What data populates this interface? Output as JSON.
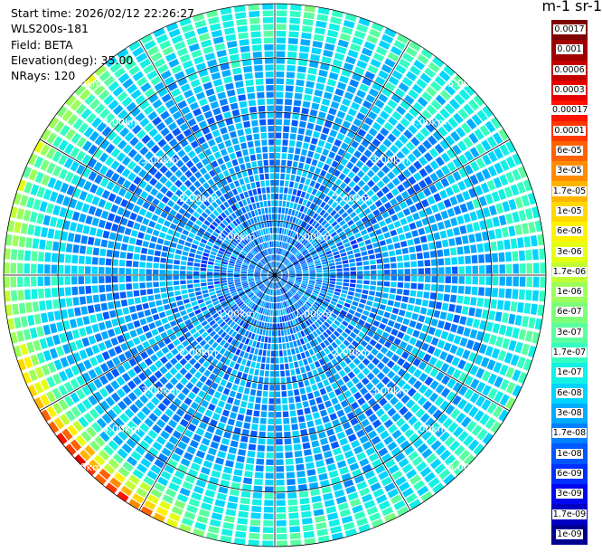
{
  "header": {
    "start_time": "Start time: 2026/02/12 22:26:27",
    "instrument": "WLS200s-181",
    "field": "Field: BETA",
    "elevation": "Elevation(deg): 35.00",
    "nrays": "NRays: 120"
  },
  "colorbar": {
    "title": "m-1 sr-1",
    "labels": [
      "0.0017",
      "0.001",
      "0.0006",
      "0.0003",
      "0.00017",
      "0.0001",
      "6e-05",
      "3e-05",
      "1.7e-05",
      "1e-05",
      "6e-06",
      "3e-06",
      "1.7e-06",
      "1e-06",
      "6e-07",
      "3e-07",
      "1.7e-07",
      "1e-07",
      "6e-08",
      "3e-08",
      "1.7e-08",
      "1e-08",
      "6e-09",
      "3e-09",
      "1.7e-09",
      "1e-09"
    ],
    "colors": [
      "#7f0000",
      "#a00000",
      "#c40000",
      "#e60000",
      "#ff1200",
      "#ff3800",
      "#ff6200",
      "#ff8c00",
      "#ffb400",
      "#ffd800",
      "#fff200",
      "#e4ff13",
      "#c0ff36",
      "#9cff5a",
      "#7dff7a",
      "#5bffa0",
      "#36ffc2",
      "#13f0e4",
      "#00d4ff",
      "#00acff",
      "#0080ff",
      "#0058ff",
      "#0030ff",
      "#0008f0",
      "#0000c4",
      "#000090"
    ]
  },
  "chart_data": {
    "type": "heatmap",
    "projection": "polar-ppi",
    "field": "BETA",
    "elevation_deg": 35.0,
    "n_rays": 120,
    "range_rings_km": [
      1.0,
      2.0,
      3.0,
      4.0,
      5.0
    ],
    "ring_labels": [
      "1.00km",
      "2.00km",
      "3.00km",
      "4.00km",
      "5.00km"
    ],
    "max_range_km": 5.0,
    "azimuth_lines_deg": [
      0,
      30,
      60,
      90,
      120,
      150,
      180,
      210,
      240,
      270,
      300,
      330
    ],
    "color_scale": "log",
    "value_range": [
      1e-09,
      0.0017
    ],
    "background_level": "6e-08",
    "field_description": "lower values near center, rising toward outer ring; maximum (up to ~1e-04) along lower-left outer edge",
    "sample_rays": [
      {
        "azimuth_deg": 0,
        "values_by_ring_km": {
          "1": "3e-08",
          "2": "3e-08",
          "3": "3e-08",
          "4": "1e-07",
          "5": "3e-07"
        }
      },
      {
        "azimuth_deg": 90,
        "values_by_ring_km": {
          "1": "3e-08",
          "2": "3e-08",
          "3": "6e-08",
          "4": "1e-07",
          "5": "1e-06"
        }
      },
      {
        "azimuth_deg": 180,
        "values_by_ring_km": {
          "1": "3e-08",
          "2": "3e-08",
          "3": "6e-08",
          "4": "1.7e-07",
          "5": "1.7e-06"
        }
      },
      {
        "azimuth_deg": 225,
        "values_by_ring_km": {
          "1": "3e-08",
          "2": "3e-08",
          "3": "6e-08",
          "4": "3e-07",
          "5": "1e-04"
        }
      },
      {
        "azimuth_deg": 270,
        "values_by_ring_km": {
          "1": "3e-08",
          "2": "3e-08",
          "3": "6e-08",
          "4": "1.7e-07",
          "5": "3e-06"
        }
      }
    ]
  }
}
